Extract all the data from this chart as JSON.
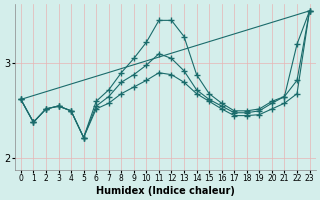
{
  "xlabel": "Humidex (Indice chaleur)",
  "background_color": "#d4eeeb",
  "line_color": "#1a6b6b",
  "grid_color": "#e8b4b4",
  "xlim": [
    -0.5,
    23.5
  ],
  "ylim": [
    1.88,
    3.62
  ],
  "yticks": [
    2,
    3
  ],
  "xticks": [
    0,
    1,
    2,
    3,
    4,
    5,
    6,
    7,
    8,
    9,
    10,
    11,
    12,
    13,
    14,
    15,
    16,
    17,
    18,
    19,
    20,
    21,
    22,
    23
  ],
  "series": [
    {
      "x": [
        0,
        1,
        2,
        3,
        4,
        5,
        6,
        7,
        8,
        9,
        10,
        11,
        12,
        13,
        14,
        15,
        16,
        17,
        18,
        19,
        20,
        21,
        22,
        23
      ],
      "y": [
        2.62,
        2.38,
        2.52,
        2.55,
        2.5,
        2.22,
        2.6,
        2.72,
        2.9,
        3.05,
        3.22,
        3.45,
        3.45,
        3.28,
        2.88,
        2.68,
        2.58,
        2.5,
        2.5,
        2.52,
        2.6,
        2.65,
        3.2,
        3.55
      ],
      "markers": true
    },
    {
      "x": [
        0,
        1,
        2,
        3,
        4,
        5,
        6,
        7,
        8,
        9,
        10,
        11,
        12,
        13,
        14,
        15,
        16,
        17,
        18,
        19,
        20,
        21,
        22,
        23
      ],
      "y": [
        2.62,
        2.38,
        2.52,
        2.55,
        2.5,
        2.22,
        2.55,
        2.65,
        2.8,
        2.88,
        2.98,
        3.1,
        3.05,
        2.92,
        2.72,
        2.62,
        2.55,
        2.48,
        2.48,
        2.5,
        2.58,
        2.65,
        2.82,
        3.55
      ],
      "markers": true
    },
    {
      "x": [
        0,
        1,
        2,
        3,
        4,
        5,
        6,
        7,
        8,
        9,
        10,
        11,
        12,
        13,
        14,
        15,
        16,
        17,
        18,
        19,
        20,
        21,
        22,
        23
      ],
      "y": [
        2.62,
        2.38,
        2.52,
        2.55,
        2.5,
        2.22,
        2.52,
        2.58,
        2.68,
        2.75,
        2.82,
        2.9,
        2.88,
        2.8,
        2.68,
        2.6,
        2.52,
        2.45,
        2.45,
        2.46,
        2.52,
        2.58,
        2.68,
        3.55
      ],
      "markers": true
    },
    {
      "x": [
        0,
        23
      ],
      "y": [
        2.62,
        3.55
      ],
      "markers": false
    }
  ]
}
